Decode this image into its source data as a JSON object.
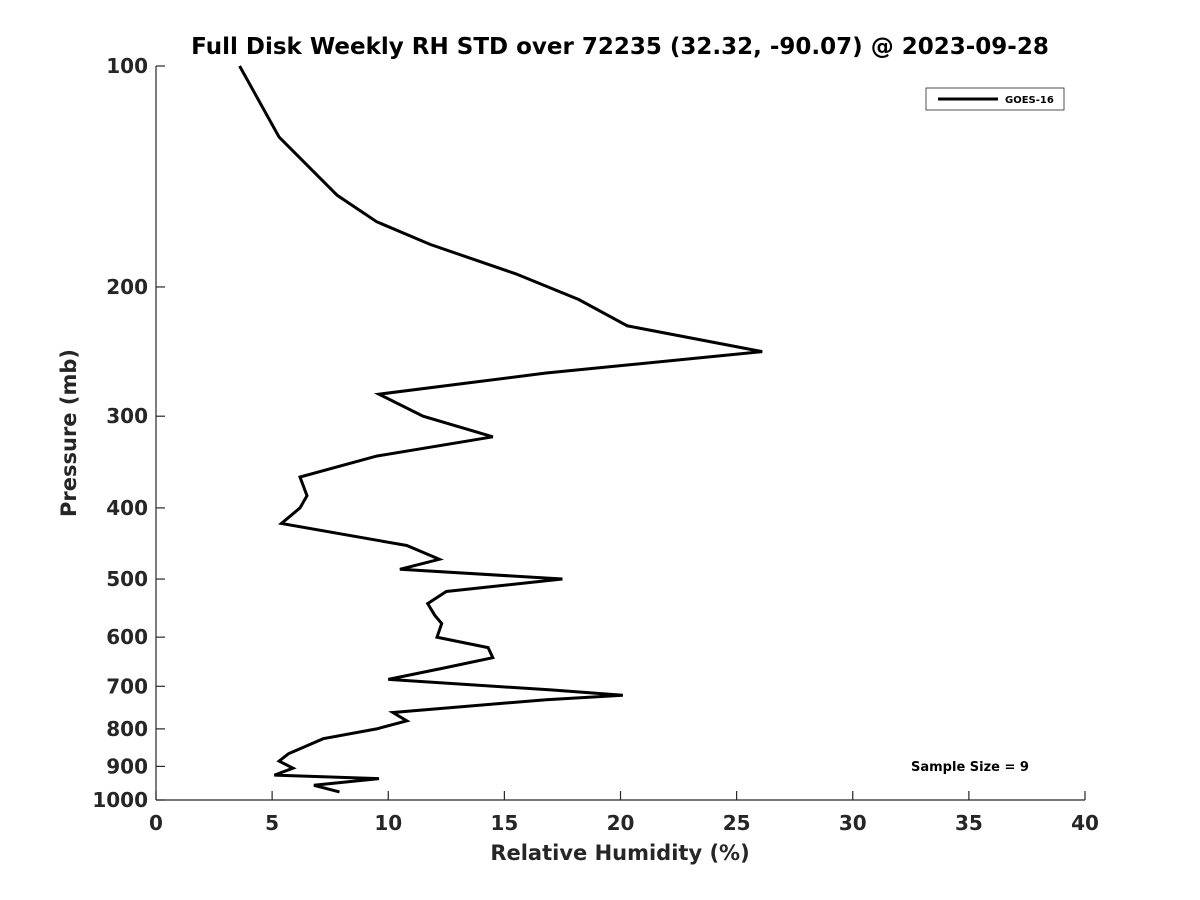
{
  "chart_data": {
    "type": "line",
    "title": "Full Disk Weekly RH STD over 72235 (32.32, -90.07) @ 2023-09-28",
    "xlabel": "Relative Humidity (%)",
    "ylabel": "Pressure (mb)",
    "xlim": [
      0,
      40
    ],
    "ylim": [
      1000,
      100
    ],
    "yscale": "log",
    "grid": false,
    "legend_position": "top-right",
    "x_ticks": [
      0,
      5,
      10,
      15,
      20,
      25,
      30,
      35,
      40
    ],
    "x_tick_labels": [
      "0",
      "5",
      "10",
      "15",
      "20",
      "25",
      "30",
      "35",
      "40"
    ],
    "y_ticks": [
      100,
      200,
      300,
      400,
      500,
      600,
      700,
      800,
      900,
      1000
    ],
    "y_tick_labels": [
      "100",
      "200",
      "300",
      "400",
      "500",
      "600",
      "700",
      "800",
      "900",
      "1000"
    ],
    "annotation": "Sample Size = 9",
    "series": [
      {
        "name": "GOES-16",
        "color": "#000000",
        "points": [
          [
            3.6,
            100
          ],
          [
            5.3,
            125
          ],
          [
            7.8,
            150
          ],
          [
            9.5,
            163
          ],
          [
            11.8,
            175
          ],
          [
            15.5,
            192
          ],
          [
            18.2,
            208
          ],
          [
            20.3,
            226
          ],
          [
            26.1,
            245
          ],
          [
            16.8,
            262
          ],
          [
            9.6,
            280
          ],
          [
            11.5,
            300
          ],
          [
            14.5,
            320
          ],
          [
            9.5,
            340
          ],
          [
            6.2,
            363
          ],
          [
            6.5,
            385
          ],
          [
            6.2,
            400
          ],
          [
            5.4,
            420
          ],
          [
            10.8,
            450
          ],
          [
            12.2,
            470
          ],
          [
            10.5,
            485
          ],
          [
            17.5,
            500
          ],
          [
            12.5,
            520
          ],
          [
            11.7,
            540
          ],
          [
            12.0,
            560
          ],
          [
            12.3,
            575
          ],
          [
            12.1,
            600
          ],
          [
            14.3,
            620
          ],
          [
            14.5,
            640
          ],
          [
            12.5,
            660
          ],
          [
            10.0,
            685
          ],
          [
            17.0,
            708
          ],
          [
            20.1,
            720
          ],
          [
            16.8,
            730
          ],
          [
            10.2,
            760
          ],
          [
            10.8,
            780
          ],
          [
            9.5,
            800
          ],
          [
            7.2,
            825
          ],
          [
            5.7,
            865
          ],
          [
            5.3,
            885
          ],
          [
            5.9,
            905
          ],
          [
            5.1,
            925
          ],
          [
            9.6,
            935
          ],
          [
            6.8,
            955
          ],
          [
            7.9,
            975
          ]
        ]
      }
    ]
  }
}
